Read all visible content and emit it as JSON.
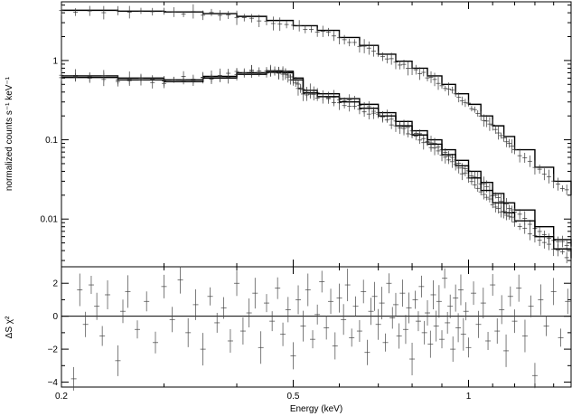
{
  "chart_data": [
    {
      "type": "line",
      "panel": "spectrum",
      "xlabel": "",
      "ylabel": "normalized counts s⁻¹ keV⁻¹",
      "xscale": "log",
      "yscale": "log",
      "xlim": [
        0.2,
        1.5
      ],
      "ylim": [
        0.0025,
        5.5
      ],
      "y_ticks": [
        {
          "value": 0.01,
          "label": "0.01"
        },
        {
          "value": 0.1,
          "label": "0.1"
        },
        {
          "value": 1,
          "label": "1"
        }
      ],
      "grid": false,
      "series": [
        {
          "x": [
            0.2,
            0.25,
            0.3,
            0.35,
            0.4,
            0.45,
            0.5,
            0.55,
            0.6,
            0.65,
            0.7,
            0.75,
            0.8,
            0.85,
            0.9,
            0.95,
            1.0,
            1.05,
            1.1,
            1.15,
            1.2,
            1.3,
            1.4,
            1.5
          ],
          "values": [
            4.3,
            4.2,
            4.1,
            3.9,
            3.6,
            3.2,
            2.75,
            2.4,
            1.95,
            1.55,
            1.2,
            0.98,
            0.8,
            0.64,
            0.5,
            0.38,
            0.28,
            0.2,
            0.15,
            0.11,
            0.075,
            0.045,
            0.03,
            0.02
          ]
        },
        {
          "x": [
            0.2,
            0.25,
            0.3,
            0.35,
            0.4,
            0.45,
            0.48,
            0.5,
            0.52,
            0.55,
            0.6,
            0.65,
            0.7,
            0.75,
            0.8,
            0.85,
            0.9,
            0.95,
            1.0,
            1.05,
            1.1,
            1.15,
            1.2,
            1.3,
            1.4,
            1.5
          ],
          "values": [
            0.64,
            0.6,
            0.57,
            0.63,
            0.7,
            0.74,
            0.73,
            0.6,
            0.42,
            0.38,
            0.33,
            0.28,
            0.22,
            0.17,
            0.13,
            0.1,
            0.075,
            0.055,
            0.04,
            0.029,
            0.021,
            0.016,
            0.013,
            0.008,
            0.0055,
            0.0045
          ]
        },
        {
          "x": [
            0.2,
            0.25,
            0.3,
            0.35,
            0.4,
            0.45,
            0.48,
            0.5,
            0.52,
            0.55,
            0.6,
            0.65,
            0.7,
            0.75,
            0.8,
            0.85,
            0.9,
            0.95,
            1.0,
            1.05,
            1.1,
            1.15,
            1.2,
            1.3,
            1.4,
            1.5
          ],
          "values": [
            0.61,
            0.57,
            0.54,
            0.6,
            0.67,
            0.71,
            0.7,
            0.57,
            0.39,
            0.35,
            0.3,
            0.25,
            0.2,
            0.15,
            0.115,
            0.088,
            0.065,
            0.047,
            0.033,
            0.023,
            0.016,
            0.012,
            0.0095,
            0.006,
            0.0042,
            0.0032
          ]
        }
      ]
    },
    {
      "type": "scatter",
      "panel": "residuals",
      "xlabel": "Energy (keV)",
      "ylabel": "ΔS χ²",
      "xscale": "log",
      "xlim": [
        0.2,
        1.5
      ],
      "ylim": [
        -4.3,
        3.0
      ],
      "x_ticks": [
        {
          "value": 0.2,
          "label": "0.2"
        },
        {
          "value": 0.5,
          "label": "0.5"
        },
        {
          "value": 1,
          "label": "1"
        }
      ],
      "y_ticks": [
        {
          "value": -4,
          "label": "−4"
        },
        {
          "value": -2,
          "label": "−2"
        },
        {
          "value": 0,
          "label": "0"
        },
        {
          "value": 2,
          "label": "2"
        }
      ],
      "reference_line": 0,
      "points": [
        {
          "x": 0.21,
          "y": -3.8
        },
        {
          "x": 0.215,
          "y": 1.6
        },
        {
          "x": 0.22,
          "y": -0.5
        },
        {
          "x": 0.225,
          "y": 1.9
        },
        {
          "x": 0.23,
          "y": 0.6
        },
        {
          "x": 0.235,
          "y": -1.2
        },
        {
          "x": 0.24,
          "y": 1.3
        },
        {
          "x": 0.25,
          "y": -2.7
        },
        {
          "x": 0.255,
          "y": 0.3
        },
        {
          "x": 0.26,
          "y": 1.5
        },
        {
          "x": 0.27,
          "y": -0.8
        },
        {
          "x": 0.28,
          "y": 0.9
        },
        {
          "x": 0.29,
          "y": -1.6
        },
        {
          "x": 0.3,
          "y": 1.8
        },
        {
          "x": 0.31,
          "y": -0.2
        },
        {
          "x": 0.32,
          "y": 2.2
        },
        {
          "x": 0.33,
          "y": -1.0
        },
        {
          "x": 0.34,
          "y": 0.7
        },
        {
          "x": 0.35,
          "y": -2.0
        },
        {
          "x": 0.36,
          "y": 1.2
        },
        {
          "x": 0.37,
          "y": -0.4
        },
        {
          "x": 0.38,
          "y": 0.5
        },
        {
          "x": 0.39,
          "y": -1.5
        },
        {
          "x": 0.4,
          "y": 2.0
        },
        {
          "x": 0.41,
          "y": -0.9
        },
        {
          "x": 0.42,
          "y": 0.2
        },
        {
          "x": 0.43,
          "y": 1.4
        },
        {
          "x": 0.44,
          "y": -1.9
        },
        {
          "x": 0.45,
          "y": 0.8
        },
        {
          "x": 0.46,
          "y": -0.3
        },
        {
          "x": 0.47,
          "y": 1.7
        },
        {
          "x": 0.48,
          "y": -1.1
        },
        {
          "x": 0.49,
          "y": 0.4
        },
        {
          "x": 0.5,
          "y": -2.4
        },
        {
          "x": 0.51,
          "y": 1.0
        },
        {
          "x": 0.52,
          "y": -0.6
        },
        {
          "x": 0.53,
          "y": 1.6
        },
        {
          "x": 0.54,
          "y": -1.4
        },
        {
          "x": 0.55,
          "y": 0.1
        },
        {
          "x": 0.56,
          "y": 2.1
        },
        {
          "x": 0.57,
          "y": -0.7
        },
        {
          "x": 0.58,
          "y": 0.9
        },
        {
          "x": 0.59,
          "y": -1.8
        },
        {
          "x": 0.6,
          "y": 1.1
        },
        {
          "x": 0.61,
          "y": -0.2
        },
        {
          "x": 0.62,
          "y": 1.9
        },
        {
          "x": 0.63,
          "y": -1.3
        },
        {
          "x": 0.64,
          "y": 0.6
        },
        {
          "x": 0.65,
          "y": -0.9
        },
        {
          "x": 0.66,
          "y": 1.5
        },
        {
          "x": 0.67,
          "y": -2.2
        },
        {
          "x": 0.68,
          "y": 0.3
        },
        {
          "x": 0.69,
          "y": 1.2
        },
        {
          "x": 0.7,
          "y": -0.5
        },
        {
          "x": 0.71,
          "y": 0.8
        },
        {
          "x": 0.72,
          "y": -1.6
        },
        {
          "x": 0.73,
          "y": 2.0
        },
        {
          "x": 0.74,
          "y": -0.1
        },
        {
          "x": 0.75,
          "y": 0.7
        },
        {
          "x": 0.76,
          "y": -1.2
        },
        {
          "x": 0.77,
          "y": 1.4
        },
        {
          "x": 0.78,
          "y": -0.8
        },
        {
          "x": 0.79,
          "y": 0.5
        },
        {
          "x": 0.8,
          "y": -2.6
        },
        {
          "x": 0.81,
          "y": 1.0
        },
        {
          "x": 0.82,
          "y": -0.3
        },
        {
          "x": 0.83,
          "y": 1.8
        },
        {
          "x": 0.84,
          "y": -1.0
        },
        {
          "x": 0.85,
          "y": 0.2
        },
        {
          "x": 0.86,
          "y": -1.7
        },
        {
          "x": 0.87,
          "y": 1.3
        },
        {
          "x": 0.88,
          "y": -0.6
        },
        {
          "x": 0.89,
          "y": 0.9
        },
        {
          "x": 0.9,
          "y": -1.4
        },
        {
          "x": 0.91,
          "y": 2.3
        },
        {
          "x": 0.92,
          "y": -0.4
        },
        {
          "x": 0.93,
          "y": 0.6
        },
        {
          "x": 0.94,
          "y": -2.0
        },
        {
          "x": 0.95,
          "y": 1.1
        },
        {
          "x": 0.96,
          "y": -0.7
        },
        {
          "x": 0.97,
          "y": 1.6
        },
        {
          "x": 0.98,
          "y": -1.1
        },
        {
          "x": 0.99,
          "y": 0.3
        },
        {
          "x": 1.0,
          "y": -1.9
        },
        {
          "x": 1.02,
          "y": 1.4
        },
        {
          "x": 1.04,
          "y": -0.5
        },
        {
          "x": 1.06,
          "y": 0.8
        },
        {
          "x": 1.08,
          "y": -1.5
        },
        {
          "x": 1.1,
          "y": 1.9
        },
        {
          "x": 1.12,
          "y": -0.9
        },
        {
          "x": 1.14,
          "y": 0.4
        },
        {
          "x": 1.16,
          "y": -2.1
        },
        {
          "x": 1.18,
          "y": 1.2
        },
        {
          "x": 1.2,
          "y": -0.3
        },
        {
          "x": 1.22,
          "y": 1.7
        },
        {
          "x": 1.25,
          "y": -1.2
        },
        {
          "x": 1.28,
          "y": 0.6
        },
        {
          "x": 1.3,
          "y": -3.6
        },
        {
          "x": 1.33,
          "y": 1.0
        },
        {
          "x": 1.36,
          "y": -0.6
        },
        {
          "x": 1.4,
          "y": 1.5
        },
        {
          "x": 1.44,
          "y": -1.3
        },
        {
          "x": 1.48,
          "y": 0.9
        }
      ]
    }
  ]
}
